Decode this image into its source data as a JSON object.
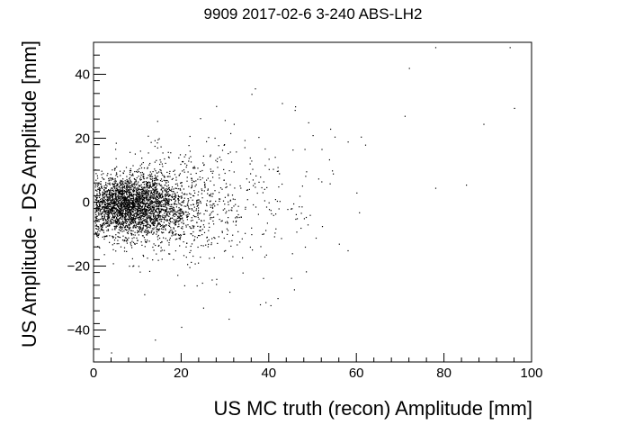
{
  "chart_data": {
    "type": "scatter",
    "title": "9909 2017-02-6 3-240 ABS-LH2",
    "xlabel": "US MC truth (recon) Amplitude [mm]",
    "ylabel": "US Amplitude - DS Amplitude [mm]",
    "xlim": [
      0,
      100
    ],
    "ylim": [
      -50,
      50
    ],
    "x_ticks": [
      0,
      20,
      40,
      60,
      80,
      100
    ],
    "y_ticks": [
      -40,
      -20,
      0,
      20,
      40
    ],
    "x_tick_labels": [
      "0",
      "20",
      "40",
      "60",
      "80",
      "100"
    ],
    "y_tick_labels": [
      "−40",
      "−20",
      "0",
      "20",
      "40"
    ],
    "grid": false,
    "marker_color": "#000000",
    "sparse_points": [
      {
        "x": 78,
        "y": 48.5
      },
      {
        "x": 95,
        "y": 48.5
      },
      {
        "x": 72,
        "y": 42
      },
      {
        "x": 43,
        "y": 31
      },
      {
        "x": 46,
        "y": 30
      },
      {
        "x": 96,
        "y": 29.5
      },
      {
        "x": 71,
        "y": 27
      },
      {
        "x": 49,
        "y": 25
      },
      {
        "x": 32,
        "y": 24.5
      },
      {
        "x": 89,
        "y": 24.5
      },
      {
        "x": 54,
        "y": 23
      },
      {
        "x": 55,
        "y": 20.5
      },
      {
        "x": 61,
        "y": 20.5
      },
      {
        "x": 62,
        "y": 18
      },
      {
        "x": 50,
        "y": 21
      },
      {
        "x": 58,
        "y": 19
      },
      {
        "x": 36,
        "y": 13
      },
      {
        "x": 42,
        "y": 11
      },
      {
        "x": 38,
        "y": 8
      },
      {
        "x": 60,
        "y": 3
      },
      {
        "x": 78,
        "y": 4.5
      },
      {
        "x": 85,
        "y": 5.5
      },
      {
        "x": 52,
        "y": 6.5
      },
      {
        "x": 47,
        "y": 2
      },
      {
        "x": 41,
        "y": -4
      },
      {
        "x": 48,
        "y": -5
      },
      {
        "x": 45,
        "y": -2
      },
      {
        "x": 36,
        "y": -10
      },
      {
        "x": 42,
        "y": -30
      },
      {
        "x": 31,
        "y": -28
      },
      {
        "x": 4,
        "y": -47
      },
      {
        "x": 20,
        "y": -39
      },
      {
        "x": 14,
        "y": -43
      },
      {
        "x": 25,
        "y": -33
      },
      {
        "x": 34,
        "y": -22
      },
      {
        "x": 39,
        "y": -17
      },
      {
        "x": 56,
        "y": -13
      },
      {
        "x": 30,
        "y": -15
      },
      {
        "x": 28,
        "y": -24
      }
    ],
    "dense_clusters": [
      {
        "cx": 7,
        "cy": -1,
        "sx": 4.5,
        "sy": 4.5,
        "n": 1900
      },
      {
        "cx": 13,
        "cy": -1,
        "sx": 4,
        "sy": 5.5,
        "n": 700
      },
      {
        "cx": 17,
        "cy": -1,
        "sx": 6,
        "sy": 8,
        "n": 500
      },
      {
        "cx": 25,
        "cy": -2,
        "sx": 6,
        "sy": 10,
        "n": 220
      },
      {
        "cx": 35,
        "cy": 0,
        "sx": 10,
        "sy": 13,
        "n": 160
      }
    ]
  }
}
